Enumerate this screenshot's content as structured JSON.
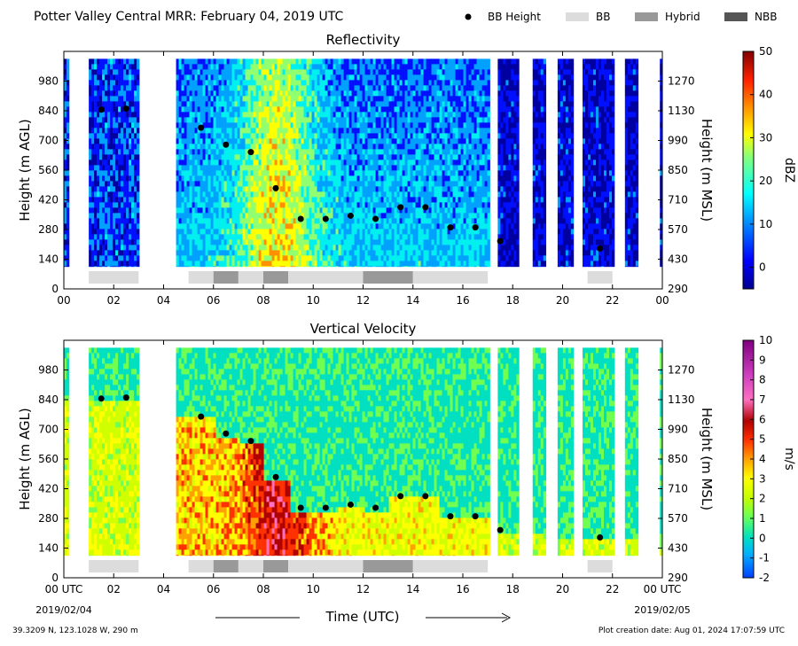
{
  "header": {
    "title": "Potter Valley Central MRR:  February 04, 2019 UTC",
    "legend": [
      {
        "label": "BB Height",
        "kind": "dot",
        "color": "#000000"
      },
      {
        "label": "BB",
        "kind": "swatch",
        "color": "#dcdcdc"
      },
      {
        "label": "Hybrid",
        "kind": "swatch",
        "color": "#999999"
      },
      {
        "label": "NBB",
        "kind": "swatch",
        "color": "#555555"
      }
    ]
  },
  "footer": {
    "location": "39.3209 N, 123.1028 W, 290 m",
    "created": "Plot creation date: Aug 01, 2024 17:07:59 UTC",
    "xlabel": "Time (UTC)",
    "start_date": "2019/02/04",
    "end_date": "2019/02/05"
  },
  "colors": {
    "bb": "#dcdcdc",
    "hybrid": "#999999",
    "nbb": "#555555"
  },
  "chart_data": [
    {
      "type": "heatmap",
      "title": "Reflectivity",
      "ylabel": "Height (m AGL)",
      "y2label": "Height (m MSL)",
      "colorbar_label": "dBZ",
      "colorbar_ticks": [
        "50",
        "40",
        "30",
        "20",
        "10",
        "0"
      ],
      "colorbar_range": [
        -5,
        50
      ],
      "x_ticks": [
        "00",
        "02",
        "04",
        "06",
        "08",
        "10",
        "12",
        "14",
        "16",
        "18",
        "20",
        "22",
        "00"
      ],
      "xlim": [
        0,
        24
      ],
      "y_ticks": [
        "980",
        "840",
        "700",
        "560",
        "420",
        "280",
        "140",
        "0"
      ],
      "y2_ticks": [
        "1270",
        "1130",
        "990",
        "850",
        "710",
        "570",
        "430",
        "290"
      ],
      "ylim": [
        0,
        1120
      ],
      "data_top": 1085,
      "data_bottom": 105,
      "bb_height": [
        {
          "x": 1.5,
          "y": 845
        },
        {
          "x": 2.5,
          "y": 850
        },
        {
          "x": 5.5,
          "y": 760
        },
        {
          "x": 6.5,
          "y": 680
        },
        {
          "x": 7.5,
          "y": 645
        },
        {
          "x": 8.5,
          "y": 475
        },
        {
          "x": 9.5,
          "y": 330
        },
        {
          "x": 10.5,
          "y": 330
        },
        {
          "x": 11.5,
          "y": 345
        },
        {
          "x": 12.5,
          "y": 330
        },
        {
          "x": 13.5,
          "y": 385
        },
        {
          "x": 14.5,
          "y": 385
        },
        {
          "x": 15.5,
          "y": 290
        },
        {
          "x": 16.5,
          "y": 290
        },
        {
          "x": 17.5,
          "y": 225
        },
        {
          "x": 21.5,
          "y": 190
        }
      ],
      "bb_bands": [
        {
          "start": 1.0,
          "end": 3.0,
          "class": "BB"
        },
        {
          "start": 5.0,
          "end": 6.0,
          "class": "BB"
        },
        {
          "start": 6.0,
          "end": 7.0,
          "class": "Hybrid"
        },
        {
          "start": 7.0,
          "end": 8.0,
          "class": "BB"
        },
        {
          "start": 8.0,
          "end": 9.0,
          "class": "Hybrid"
        },
        {
          "start": 9.0,
          "end": 12.0,
          "class": "BB"
        },
        {
          "start": 12.0,
          "end": 14.0,
          "class": "Hybrid"
        },
        {
          "start": 14.0,
          "end": 17.0,
          "class": "BB"
        },
        {
          "start": 21.0,
          "end": 22.0,
          "class": "BB"
        }
      ]
    },
    {
      "type": "heatmap",
      "title": "Vertical Velocity",
      "ylabel": "Height (m AGL)",
      "y2label": "Height (m MSL)",
      "colorbar_label": "m/s",
      "colorbar_ticks": [
        "10",
        "9",
        "8",
        "7",
        "6",
        "5",
        "4",
        "3",
        "2",
        "1",
        "0",
        "-1",
        "-2"
      ],
      "colorbar_range": [
        -2,
        10
      ],
      "x_ticks": [
        "00 UTC",
        "02",
        "04",
        "06",
        "08",
        "10",
        "12",
        "14",
        "16",
        "18",
        "20",
        "22",
        "00 UTC"
      ],
      "xlim": [
        0,
        24
      ],
      "y_ticks": [
        "980",
        "840",
        "700",
        "560",
        "420",
        "280",
        "140",
        "0"
      ],
      "y2_ticks": [
        "1270",
        "1130",
        "990",
        "850",
        "710",
        "570",
        "430",
        "290"
      ],
      "ylim": [
        0,
        1120
      ],
      "data_top": 1085,
      "data_bottom": 105,
      "bb_height": [
        {
          "x": 1.5,
          "y": 845
        },
        {
          "x": 2.5,
          "y": 850
        },
        {
          "x": 5.5,
          "y": 760
        },
        {
          "x": 6.5,
          "y": 680
        },
        {
          "x": 7.5,
          "y": 645
        },
        {
          "x": 8.5,
          "y": 475
        },
        {
          "x": 9.5,
          "y": 330
        },
        {
          "x": 10.5,
          "y": 330
        },
        {
          "x": 11.5,
          "y": 345
        },
        {
          "x": 12.5,
          "y": 330
        },
        {
          "x": 13.5,
          "y": 385
        },
        {
          "x": 14.5,
          "y": 385
        },
        {
          "x": 15.5,
          "y": 290
        },
        {
          "x": 16.5,
          "y": 290
        },
        {
          "x": 17.5,
          "y": 225
        },
        {
          "x": 21.5,
          "y": 190
        }
      ],
      "bb_bands": [
        {
          "start": 1.0,
          "end": 3.0,
          "class": "BB"
        },
        {
          "start": 5.0,
          "end": 6.0,
          "class": "BB"
        },
        {
          "start": 6.0,
          "end": 7.0,
          "class": "Hybrid"
        },
        {
          "start": 7.0,
          "end": 8.0,
          "class": "BB"
        },
        {
          "start": 8.0,
          "end": 9.0,
          "class": "Hybrid"
        },
        {
          "start": 9.0,
          "end": 12.0,
          "class": "BB"
        },
        {
          "start": 12.0,
          "end": 14.0,
          "class": "Hybrid"
        },
        {
          "start": 14.0,
          "end": 17.0,
          "class": "BB"
        },
        {
          "start": 21.0,
          "end": 22.0,
          "class": "BB"
        }
      ]
    }
  ]
}
